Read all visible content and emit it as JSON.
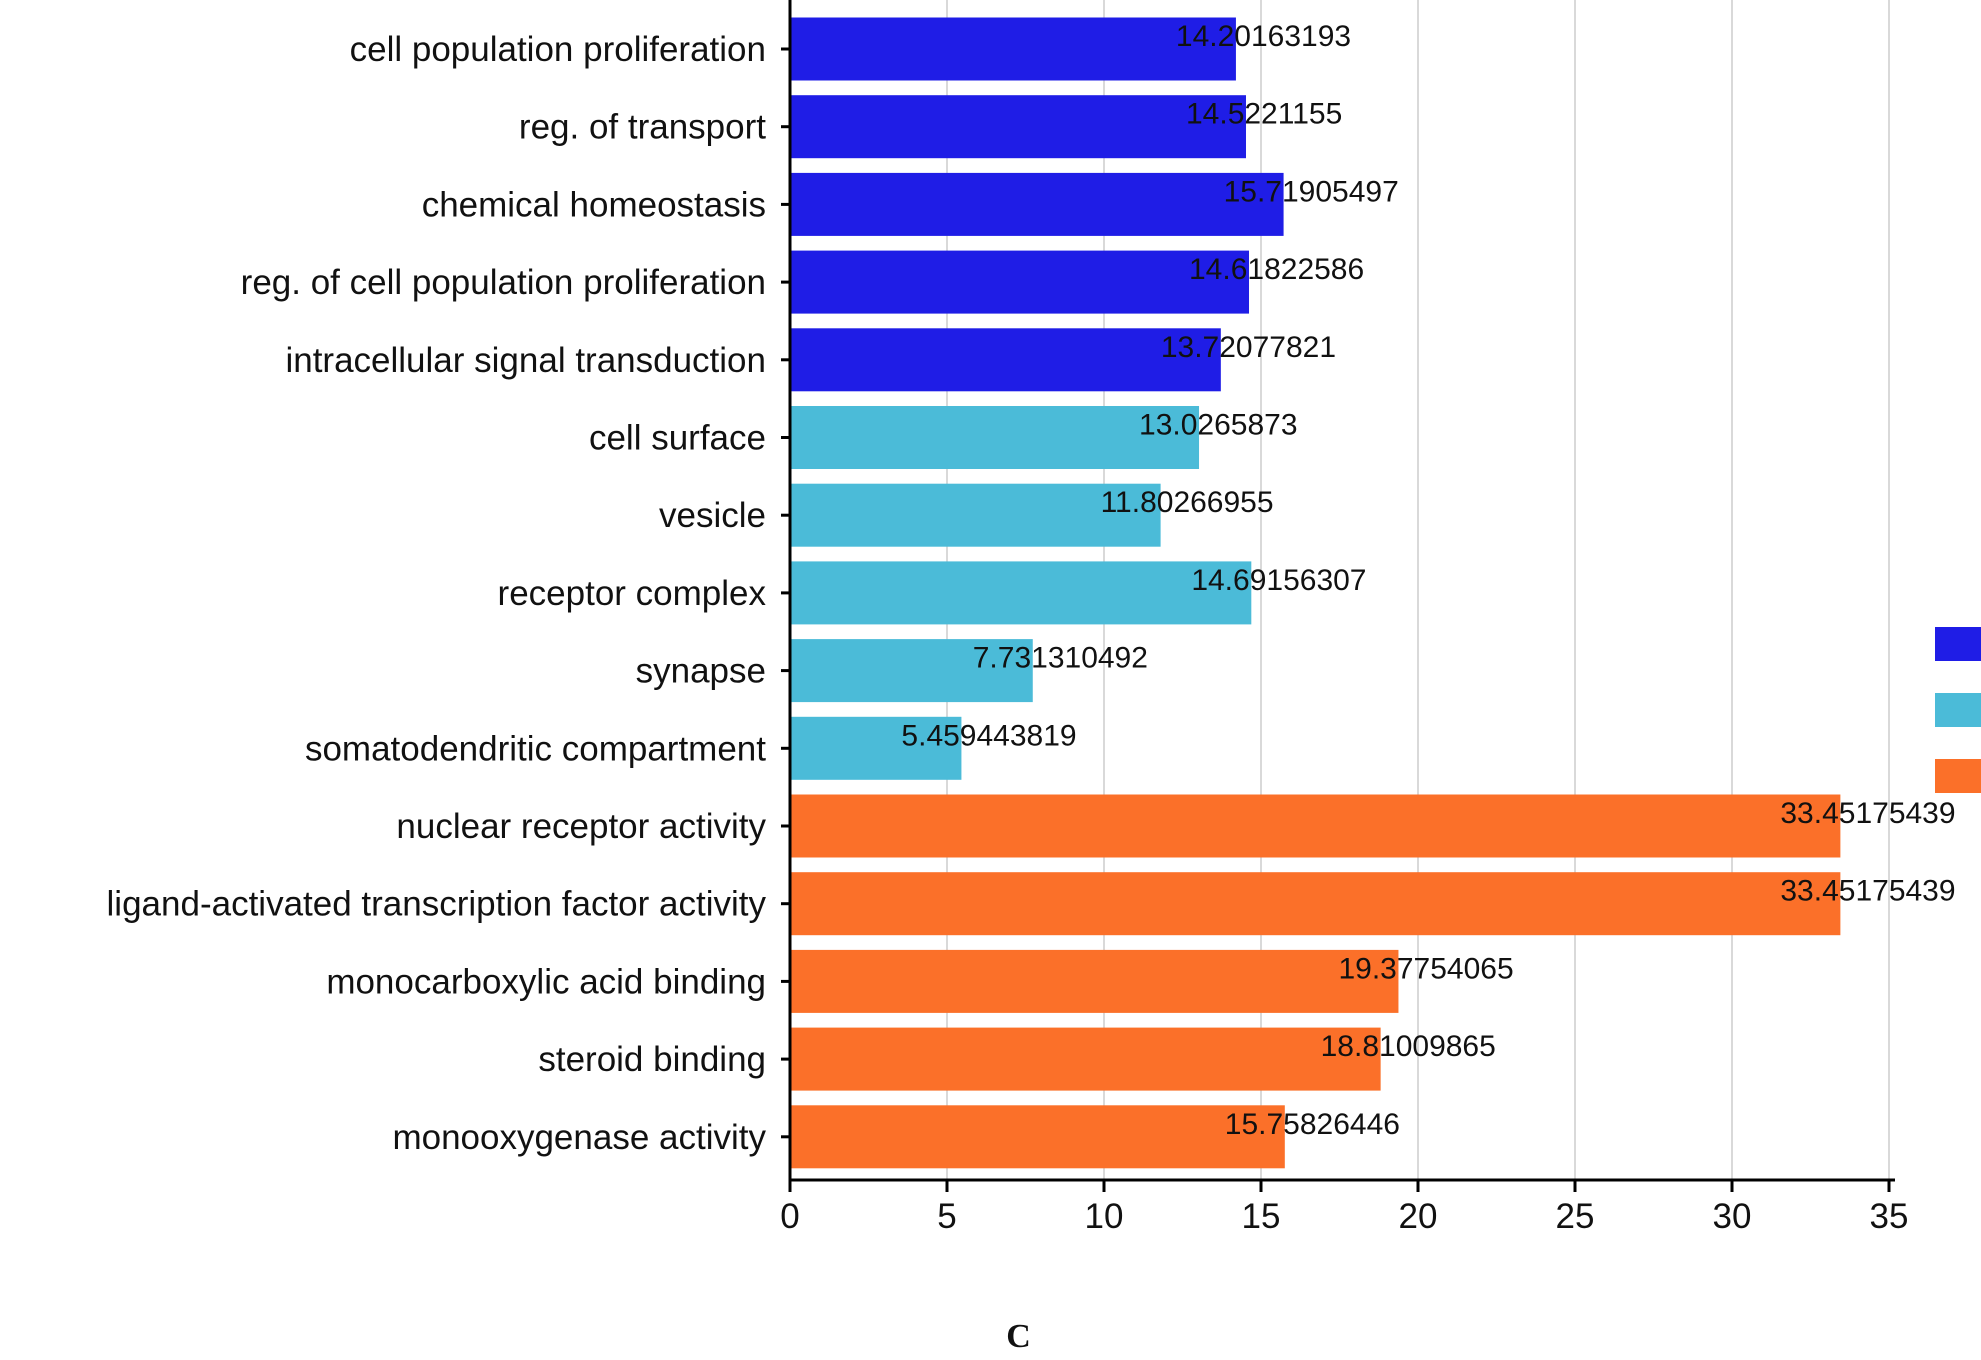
{
  "chart_data": {
    "type": "bar",
    "orientation": "horizontal",
    "categories": [
      "cell population proliferation",
      "reg. of transport",
      "chemical homeostasis",
      "reg. of cell population proliferation",
      "intracellular signal transduction",
      "cell surface",
      "vesicle",
      "receptor complex",
      "synapse",
      "somatodendritic compartment",
      "nuclear receptor activity",
      "ligand-activated transcription factor activity",
      "monocarboxylic acid binding",
      "steroid binding",
      "monooxygenase activity"
    ],
    "values": [
      14.20163193,
      14.5221155,
      15.71905497,
      14.61822586,
      13.72077821,
      13.0265873,
      11.80266955,
      14.69156307,
      7.731310492,
      5.459443819,
      33.45175439,
      33.45175439,
      19.37754065,
      18.81009865,
      15.75826446
    ],
    "value_labels": [
      "14.20163193",
      "14.5221155",
      "15.71905497",
      "14.61822586",
      "13.72077821",
      "13.0265873",
      "11.80266955",
      "14.69156307",
      "7.731310492",
      "5.459443819",
      "33.45175439",
      "33.45175439",
      "19.37754065",
      "18.81009865",
      "15.75826446"
    ],
    "groups": [
      0,
      0,
      0,
      0,
      0,
      1,
      1,
      1,
      1,
      1,
      2,
      2,
      2,
      2,
      2
    ],
    "group_colors": [
      "#1f1de6",
      "#4bbbd8",
      "#fb7029"
    ],
    "xlim": [
      0,
      35
    ],
    "xticks": [
      "0",
      "5",
      "10",
      "15",
      "20",
      "25",
      "30",
      "35"
    ],
    "xtick_values": [
      0,
      5,
      10,
      15,
      20,
      25,
      30,
      35
    ],
    "grid": "vertical",
    "legend_placement": "right",
    "title": "",
    "xlabel": "",
    "ylabel": ""
  },
  "panel_label": "C"
}
